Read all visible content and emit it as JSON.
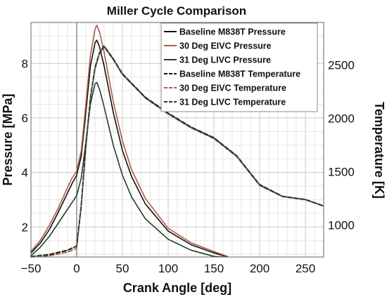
{
  "chart_data": {
    "type": "line",
    "title": "Miller Cycle Comparison",
    "xlabel": "Crank Angle [deg]",
    "ylabel_left": "Pressure [MPa]",
    "ylabel_right": "Temperature [K]",
    "xlim": [
      -50,
      270
    ],
    "ylim_left": [
      0.9,
      9.5
    ],
    "ylim_right": [
      700,
      2900
    ],
    "x_ticks": [
      -50,
      0,
      50,
      100,
      150,
      200,
      250
    ],
    "y_ticks_left": [
      2,
      4,
      6,
      8
    ],
    "y_ticks_right": [
      1000,
      1500,
      2000,
      2500
    ],
    "grid": true,
    "legend_position": "top-right",
    "series": [
      {
        "name": "Baseline M838T Pressure",
        "axis": "left",
        "color": "#111111",
        "dash": "solid",
        "points": [
          [
            -50,
            1.05
          ],
          [
            -40,
            1.4
          ],
          [
            -30,
            1.9
          ],
          [
            -20,
            2.55
          ],
          [
            -10,
            3.25
          ],
          [
            -5,
            3.6
          ],
          [
            0,
            3.9
          ],
          [
            5,
            4.6
          ],
          [
            10,
            6.2
          ],
          [
            15,
            7.9
          ],
          [
            20,
            8.75
          ],
          [
            22,
            8.85
          ],
          [
            25,
            8.6
          ],
          [
            30,
            7.9
          ],
          [
            40,
            6.2
          ],
          [
            50,
            4.8
          ],
          [
            60,
            3.85
          ],
          [
            75,
            2.85
          ],
          [
            100,
            1.85
          ],
          [
            125,
            1.35
          ],
          [
            150,
            1.05
          ],
          [
            165,
            0.9
          ]
        ]
      },
      {
        "name": "30 Deg EIVC Pressure",
        "axis": "left",
        "color": "#b05a48",
        "dash": "solid",
        "points": [
          [
            -50,
            1.1
          ],
          [
            -40,
            1.5
          ],
          [
            -30,
            2.05
          ],
          [
            -20,
            2.7
          ],
          [
            -10,
            3.45
          ],
          [
            -5,
            3.8
          ],
          [
            0,
            4.05
          ],
          [
            5,
            4.8
          ],
          [
            10,
            6.5
          ],
          [
            15,
            8.3
          ],
          [
            20,
            9.25
          ],
          [
            22,
            9.4
          ],
          [
            25,
            9.15
          ],
          [
            30,
            8.4
          ],
          [
            40,
            6.6
          ],
          [
            50,
            5.15
          ],
          [
            60,
            4.1
          ],
          [
            75,
            3.05
          ],
          [
            100,
            1.95
          ],
          [
            125,
            1.42
          ],
          [
            150,
            1.1
          ],
          [
            165,
            0.92
          ]
        ]
      },
      {
        "name": "31 Deg LIVC Pressure",
        "axis": "left",
        "color": "#1f3f2f",
        "dash": "solid",
        "points": [
          [
            -50,
            0.95
          ],
          [
            -40,
            1.25
          ],
          [
            -30,
            1.65
          ],
          [
            -20,
            2.15
          ],
          [
            -10,
            2.65
          ],
          [
            -5,
            2.9
          ],
          [
            0,
            3.15
          ],
          [
            5,
            3.8
          ],
          [
            10,
            5.1
          ],
          [
            15,
            6.5
          ],
          [
            20,
            7.25
          ],
          [
            22,
            7.3
          ],
          [
            25,
            7.05
          ],
          [
            30,
            6.4
          ],
          [
            40,
            5.0
          ],
          [
            50,
            3.9
          ],
          [
            60,
            3.1
          ],
          [
            75,
            2.3
          ],
          [
            100,
            1.55
          ],
          [
            125,
            1.15
          ],
          [
            150,
            0.92
          ],
          [
            160,
            0.85
          ]
        ]
      },
      {
        "name": "Baseline M838T Temperature",
        "axis": "right",
        "color": "#111111",
        "dash": "dashed",
        "points": [
          [
            -50,
            700
          ],
          [
            -30,
            720
          ],
          [
            -10,
            760
          ],
          [
            0,
            800
          ],
          [
            5,
            1200
          ],
          [
            10,
            1750
          ],
          [
            15,
            2200
          ],
          [
            20,
            2480
          ],
          [
            25,
            2620
          ],
          [
            30,
            2680
          ],
          [
            40,
            2560
          ],
          [
            50,
            2420
          ],
          [
            75,
            2200
          ],
          [
            100,
            2050
          ],
          [
            125,
            1920
          ],
          [
            150,
            1820
          ],
          [
            175,
            1650
          ],
          [
            200,
            1380
          ],
          [
            225,
            1270
          ],
          [
            250,
            1240
          ],
          [
            270,
            1180
          ]
        ]
      },
      {
        "name": "30 Deg EIVC Temperature",
        "axis": "right",
        "color": "#b05a48",
        "dash": "dashed",
        "points": [
          [
            -50,
            690
          ],
          [
            -30,
            710
          ],
          [
            -10,
            745
          ],
          [
            0,
            780
          ],
          [
            5,
            1170
          ],
          [
            10,
            1720
          ],
          [
            15,
            2180
          ],
          [
            20,
            2460
          ],
          [
            25,
            2610
          ],
          [
            30,
            2670
          ],
          [
            40,
            2550
          ],
          [
            50,
            2410
          ],
          [
            75,
            2190
          ],
          [
            100,
            2040
          ],
          [
            125,
            1910
          ],
          [
            150,
            1810
          ],
          [
            175,
            1640
          ],
          [
            200,
            1370
          ],
          [
            225,
            1265
          ],
          [
            250,
            1235
          ],
          [
            270,
            1175
          ]
        ]
      },
      {
        "name": "31 Deg LIVC Temperature",
        "axis": "right",
        "color": "#1f3f2f",
        "dash": "dashed",
        "points": [
          [
            -50,
            705
          ],
          [
            -30,
            725
          ],
          [
            -10,
            765
          ],
          [
            0,
            805
          ],
          [
            5,
            1180
          ],
          [
            10,
            1730
          ],
          [
            15,
            2190
          ],
          [
            20,
            2470
          ],
          [
            25,
            2615
          ],
          [
            30,
            2675
          ],
          [
            40,
            2555
          ],
          [
            50,
            2415
          ],
          [
            75,
            2195
          ],
          [
            100,
            2045
          ],
          [
            125,
            1915
          ],
          [
            150,
            1815
          ],
          [
            175,
            1645
          ],
          [
            200,
            1375
          ],
          [
            225,
            1268
          ],
          [
            250,
            1238
          ],
          [
            270,
            1178
          ]
        ]
      }
    ]
  }
}
